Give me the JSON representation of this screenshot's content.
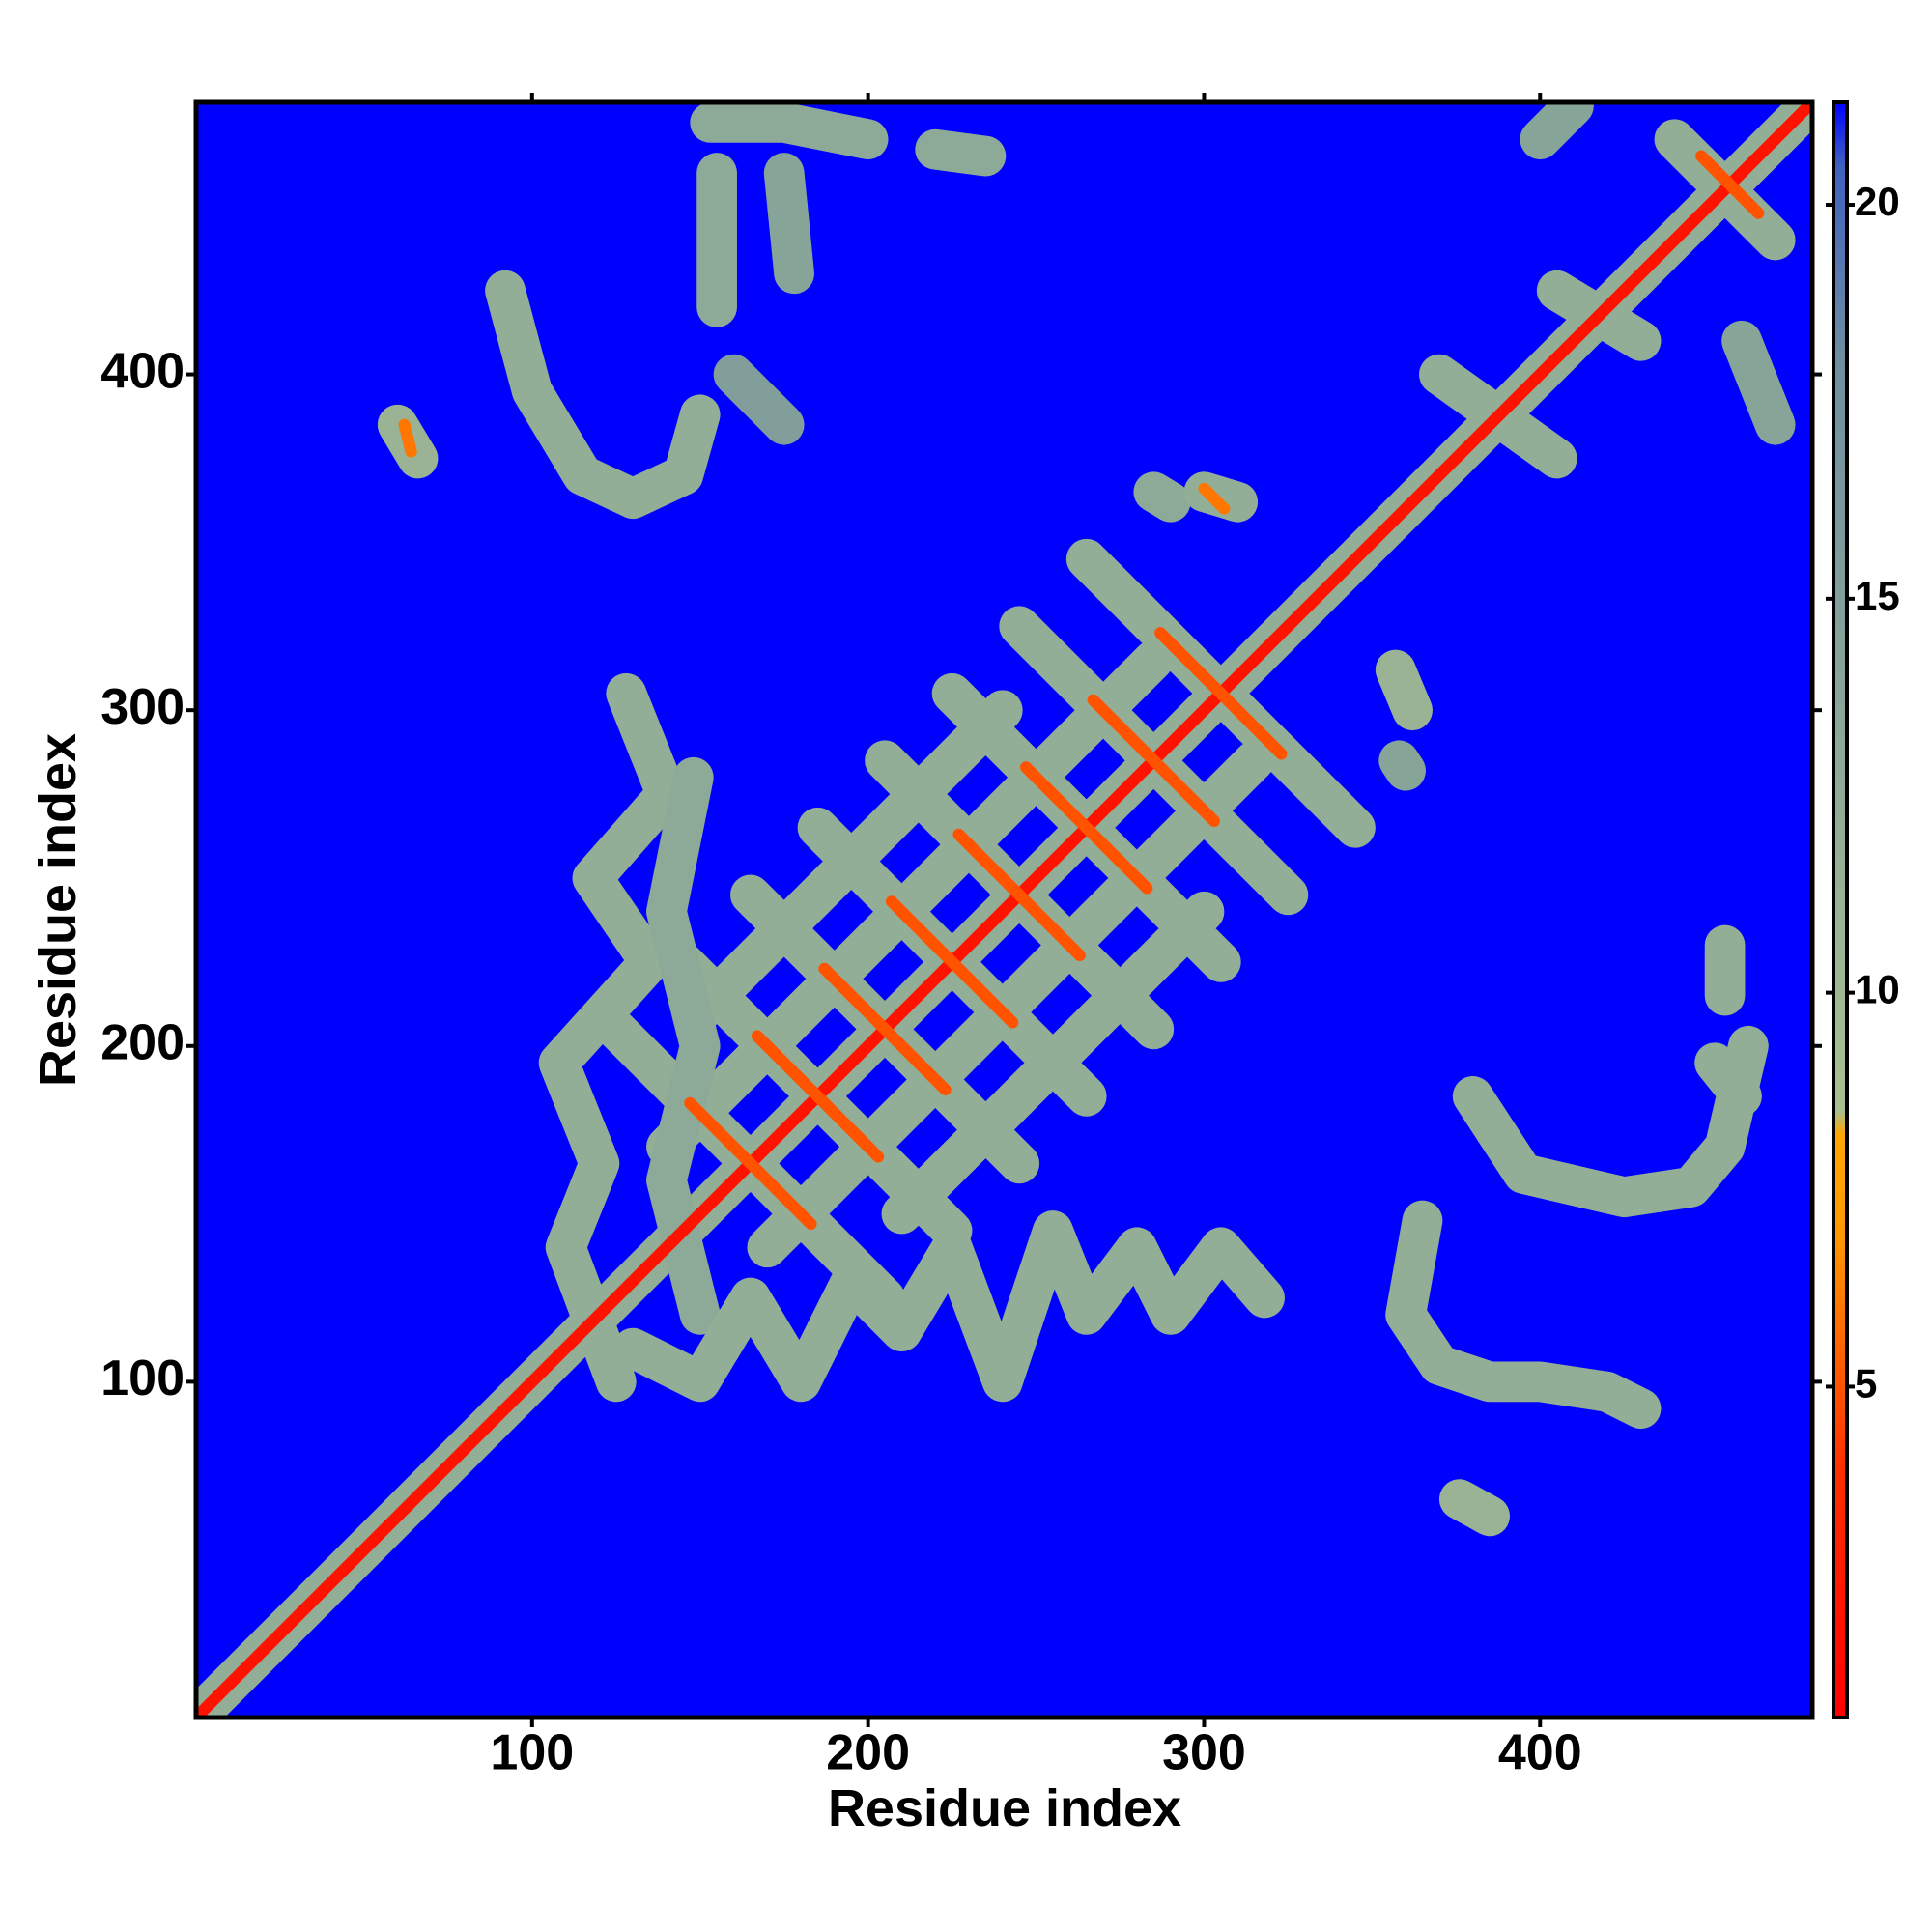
{
  "chart_data": {
    "type": "heatmap",
    "xlabel": "Residue index",
    "ylabel": "Residue index",
    "xlim": [
      0,
      481
    ],
    "ylim": [
      0,
      481
    ],
    "xticks": [
      100,
      200,
      300,
      400
    ],
    "yticks": [
      100,
      200,
      300,
      400
    ],
    "zlim": [
      0.8,
      21.3
    ],
    "zticks": [
      5,
      10,
      15,
      20
    ],
    "colorscale": [
      [
        0.8,
        "#ff0000"
      ],
      [
        4,
        "#ff3000"
      ],
      [
        7,
        "#ff9900"
      ],
      [
        8.2,
        "#ffa500"
      ],
      [
        8.5,
        "#a8c090"
      ],
      [
        18,
        "#6f8fa0"
      ],
      [
        20.5,
        "#4060c0"
      ],
      [
        21.3,
        "#0000ff"
      ]
    ],
    "background": 21.3,
    "contacts": [
      {
        "points": [
          [
            0,
            0
          ],
          [
            481,
            481
          ]
        ],
        "value": 12
      },
      {
        "points": [
          [
            125,
            205
          ],
          [
            205,
            125
          ]
        ],
        "value": 12
      },
      {
        "points": [
          [
            145,
            225
          ],
          [
            225,
            145
          ]
        ],
        "value": 12
      },
      {
        "points": [
          [
            165,
            245
          ],
          [
            245,
            165
          ]
        ],
        "value": 12
      },
      {
        "points": [
          [
            185,
            265
          ],
          [
            265,
            185
          ]
        ],
        "value": 12
      },
      {
        "points": [
          [
            205,
            285
          ],
          [
            285,
            205
          ]
        ],
        "value": 12
      },
      {
        "points": [
          [
            225,
            305
          ],
          [
            305,
            225
          ]
        ],
        "value": 12
      },
      {
        "points": [
          [
            245,
            325
          ],
          [
            325,
            245
          ]
        ],
        "value": 12
      },
      {
        "points": [
          [
            265,
            345
          ],
          [
            345,
            265
          ]
        ],
        "value": 12
      },
      {
        "points": [
          [
            140,
            170
          ],
          [
            285,
            315
          ]
        ],
        "value": 12
      },
      {
        "points": [
          [
            170,
            140
          ],
          [
            315,
            285
          ]
        ],
        "value": 12
      },
      {
        "points": [
          [
            150,
            210
          ],
          [
            240,
            300
          ]
        ],
        "value": 12
      },
      {
        "points": [
          [
            210,
            150
          ],
          [
            300,
            240
          ]
        ],
        "value": 12
      },
      {
        "points": [
          [
            125,
            100
          ],
          [
            110,
            140
          ],
          [
            120,
            165
          ],
          [
            108,
            195
          ],
          [
            135,
            225
          ],
          [
            118,
            250
          ],
          [
            140,
            275
          ],
          [
            128,
            305
          ]
        ],
        "value": 12
      },
      {
        "points": [
          [
            150,
            120
          ],
          [
            140,
            160
          ],
          [
            150,
            200
          ],
          [
            140,
            240
          ],
          [
            148,
            280
          ]
        ],
        "value": 13
      },
      {
        "points": [
          [
            130,
            110
          ],
          [
            150,
            100
          ],
          [
            165,
            125
          ],
          [
            180,
            100
          ],
          [
            195,
            130
          ],
          [
            210,
            115
          ],
          [
            225,
            140
          ],
          [
            240,
            100
          ],
          [
            255,
            145
          ],
          [
            265,
            120
          ],
          [
            280,
            140
          ],
          [
            290,
            120
          ],
          [
            305,
            140
          ],
          [
            318,
            125
          ]
        ],
        "value": 12
      },
      {
        "points": [
          [
            92,
            425
          ],
          [
            100,
            395
          ],
          [
            115,
            370
          ],
          [
            130,
            363
          ],
          [
            145,
            370
          ],
          [
            150,
            388
          ]
        ],
        "value": 12
      },
      {
        "points": [
          [
            60,
            385
          ],
          [
            66,
            375
          ]
        ],
        "value": 11
      },
      {
        "points": [
          [
            153,
            475
          ],
          [
            175,
            475
          ],
          [
            200,
            470
          ]
        ],
        "value": 13
      },
      {
        "points": [
          [
            155,
            460
          ],
          [
            155,
            420
          ]
        ],
        "value": 13
      },
      {
        "points": [
          [
            175,
            460
          ],
          [
            178,
            430
          ]
        ],
        "value": 14
      },
      {
        "points": [
          [
            220,
            467
          ],
          [
            235,
            465
          ]
        ],
        "value": 13
      },
      {
        "points": [
          [
            160,
            400
          ],
          [
            175,
            385
          ]
        ],
        "value": 15
      },
      {
        "points": [
          [
            285,
            365
          ],
          [
            290,
            362
          ]
        ],
        "value": 13
      },
      {
        "points": [
          [
            300,
            365
          ],
          [
            310,
            362
          ]
        ],
        "value": 12
      },
      {
        "points": [
          [
            357,
            312
          ],
          [
            362,
            300
          ]
        ],
        "value": 11
      },
      {
        "points": [
          [
            358,
            285
          ],
          [
            360,
            282
          ]
        ],
        "value": 14
      },
      {
        "points": [
          [
            455,
            230
          ],
          [
            455,
            215
          ]
        ],
        "value": 12
      },
      {
        "points": [
          [
            452,
            195
          ],
          [
            460,
            185
          ]
        ],
        "value": 12
      },
      {
        "points": [
          [
            380,
            185
          ],
          [
            395,
            162
          ],
          [
            425,
            155
          ],
          [
            445,
            158
          ],
          [
            455,
            170
          ],
          [
            462,
            200
          ]
        ],
        "value": 12
      },
      {
        "points": [
          [
            365,
            148
          ],
          [
            360,
            120
          ],
          [
            370,
            105
          ],
          [
            385,
            100
          ],
          [
            400,
            100
          ],
          [
            420,
            97
          ],
          [
            430,
            92
          ]
        ],
        "value": 12
      },
      {
        "points": [
          [
            376,
            65
          ],
          [
            385,
            60
          ]
        ],
        "value": 11
      },
      {
        "points": [
          [
            370,
            400
          ],
          [
            405,
            375
          ]
        ],
        "value": 12
      },
      {
        "points": [
          [
            405,
            425
          ],
          [
            430,
            410
          ]
        ],
        "value": 12
      },
      {
        "points": [
          [
            440,
            470
          ],
          [
            470,
            440
          ]
        ],
        "value": 12
      },
      {
        "points": [
          [
            400,
            470
          ],
          [
            410,
            480
          ]
        ],
        "value": 14
      },
      {
        "points": [
          [
            460,
            410
          ],
          [
            470,
            385
          ]
        ],
        "value": 14
      },
      {
        "points": [
          [
            0,
            0
          ],
          [
            481,
            481
          ]
        ],
        "value": 2
      },
      {
        "points": [
          [
            147,
            183
          ],
          [
            183,
            147
          ]
        ],
        "value": 5
      },
      {
        "points": [
          [
            167,
            203
          ],
          [
            203,
            167
          ]
        ],
        "value": 5
      },
      {
        "points": [
          [
            187,
            223
          ],
          [
            223,
            187
          ]
        ],
        "value": 5
      },
      {
        "points": [
          [
            207,
            243
          ],
          [
            243,
            207
          ]
        ],
        "value": 5
      },
      {
        "points": [
          [
            227,
            263
          ],
          [
            263,
            227
          ]
        ],
        "value": 5
      },
      {
        "points": [
          [
            247,
            283
          ],
          [
            283,
            247
          ]
        ],
        "value": 5
      },
      {
        "points": [
          [
            267,
            303
          ],
          [
            303,
            267
          ]
        ],
        "value": 5
      },
      {
        "points": [
          [
            287,
            323
          ],
          [
            323,
            287
          ]
        ],
        "value": 5
      },
      {
        "points": [
          [
            448,
            465
          ],
          [
            465,
            448
          ]
        ],
        "value": 5
      },
      {
        "points": [
          [
            62,
            385
          ],
          [
            64,
            377
          ]
        ],
        "value": 6
      },
      {
        "points": [
          [
            300,
            366
          ],
          [
            306,
            360
          ]
        ],
        "value": 6
      }
    ]
  }
}
